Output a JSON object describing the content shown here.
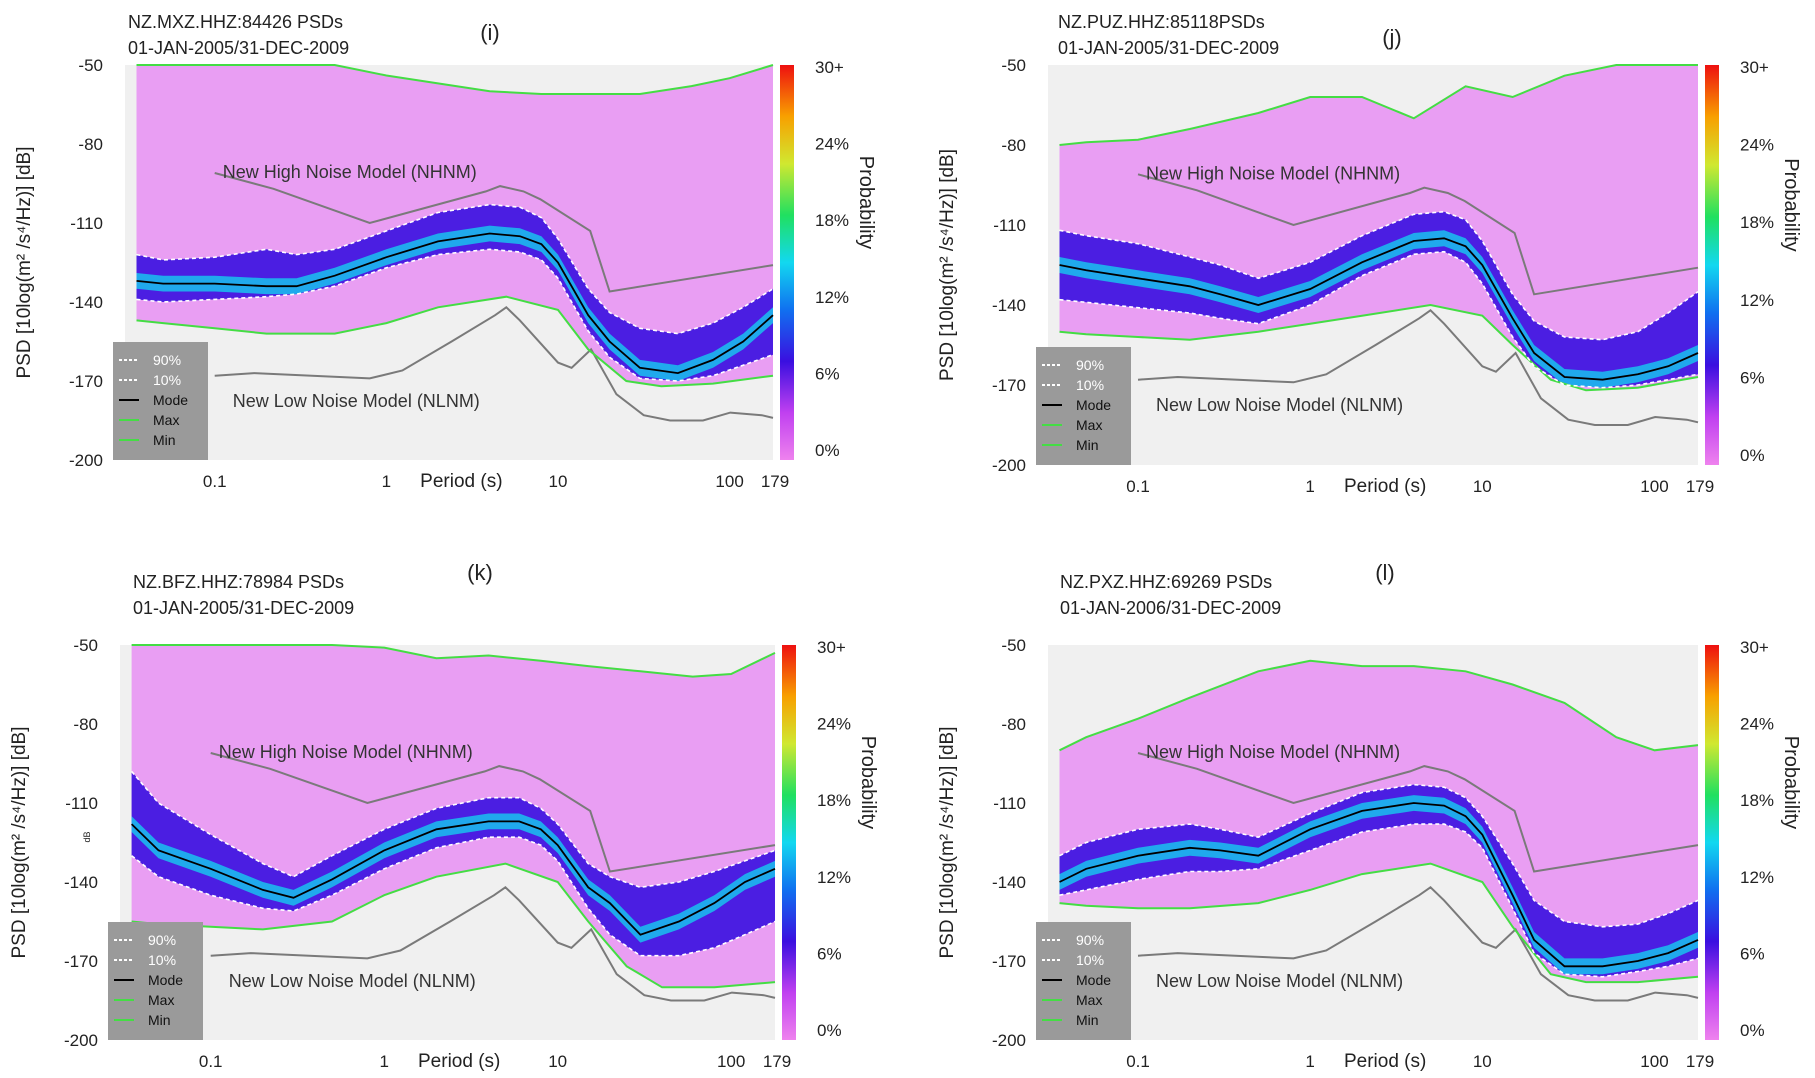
{
  "colors": {
    "plot_background": "#f0f0f0",
    "density_low": "#e88ff3",
    "density_mid": "#3a0fe0",
    "density_high": "#12d8f0",
    "max_min_curve": "#44dd44",
    "noise_model": "#7a7a7a",
    "percentile_line": "#ffffff",
    "mode_line": "#000000",
    "legend_box": "#9a9a9a"
  },
  "common": {
    "ylabel_left": "PSD [10log(m² /s⁴/Hz)] [dB]",
    "xlabel": "Period (s)",
    "colorbar_label": "Probability",
    "nhnm_label": "New High Noise Model (NHNM)",
    "nlnm_label": "New Low Noise Model (NLNM)",
    "legend": [
      "90%",
      "10%",
      "Mode",
      "Max",
      "Min"
    ],
    "x_ticks": [
      "0.1",
      "1",
      "10",
      "100",
      "179"
    ],
    "y_ticks": [
      "-50",
      "-80",
      "-110",
      "-140",
      "-170",
      "-200"
    ],
    "colorbar_ticks": [
      "30+",
      "24%",
      "18%",
      "12%",
      "6%",
      "0%"
    ],
    "small_db_label": "dB"
  },
  "chart_data": [
    {
      "type": "heatmap",
      "panel": "(i)",
      "title": "NZ.MXZ.HHZ:84426 PSDs",
      "subtitle": "01-JAN-2005/31-DEC-2009",
      "xlabel": "Period (s)",
      "ylabel": "PSD [10log(m² /s⁴/Hz)] [dB]",
      "xscale": "log",
      "xlim": [
        0.03,
        179
      ],
      "ylim": [
        -200,
        -50
      ],
      "colorbar": {
        "label": "Probability",
        "range": [
          0,
          30
        ],
        "unit": "%"
      },
      "series": [
        {
          "name": "Mode",
          "x": [
            0.035,
            0.05,
            0.1,
            0.2,
            0.3,
            0.5,
            1,
            2,
            4,
            6,
            8,
            10,
            15,
            20,
            30,
            50,
            80,
            120,
            179
          ],
          "y": [
            -132,
            -133,
            -133,
            -134,
            -134,
            -130,
            -123,
            -117,
            -114,
            -115,
            -118,
            -125,
            -145,
            -155,
            -165,
            -167,
            -162,
            -155,
            -145
          ]
        },
        {
          "name": "90%",
          "x": [
            0.035,
            0.05,
            0.1,
            0.2,
            0.3,
            0.5,
            1,
            2,
            4,
            6,
            8,
            10,
            15,
            20,
            30,
            50,
            80,
            120,
            179
          ],
          "y": [
            -122,
            -124,
            -123,
            -120,
            -122,
            -120,
            -113,
            -106,
            -103,
            -104,
            -108,
            -116,
            -135,
            -144,
            -150,
            -152,
            -148,
            -142,
            -135
          ]
        },
        {
          "name": "10%",
          "x": [
            0.035,
            0.05,
            0.1,
            0.2,
            0.3,
            0.5,
            1,
            2,
            4,
            6,
            8,
            10,
            15,
            20,
            30,
            50,
            80,
            120,
            179
          ],
          "y": [
            -139,
            -140,
            -139,
            -138,
            -137,
            -134,
            -127,
            -122,
            -120,
            -121,
            -124,
            -131,
            -151,
            -161,
            -169,
            -170,
            -168,
            -164,
            -160
          ]
        },
        {
          "name": "Max",
          "x": [
            0.035,
            0.05,
            0.1,
            0.2,
            0.5,
            1,
            2,
            4,
            8,
            15,
            30,
            60,
            100,
            179
          ],
          "y": [
            -50,
            -50,
            -50,
            -50,
            -50,
            -54,
            -57,
            -60,
            -61,
            -61,
            -61,
            -58,
            -55,
            -50
          ]
        },
        {
          "name": "Min",
          "x": [
            0.035,
            0.05,
            0.1,
            0.2,
            0.5,
            1,
            2,
            5,
            10,
            15,
            25,
            40,
            80,
            179
          ],
          "y": [
            -147,
            -148,
            -150,
            -152,
            -152,
            -148,
            -142,
            -138,
            -143,
            -158,
            -170,
            -172,
            -171,
            -168
          ]
        }
      ]
    },
    {
      "type": "heatmap",
      "panel": "(j)",
      "title": "NZ.PUZ.HHZ:85118PSDs",
      "subtitle": "01-JAN-2005/31-DEC-2009",
      "xlabel": "Period (s)",
      "ylabel": "PSD [10log(m² /s⁴/Hz)] [dB]",
      "xscale": "log",
      "xlim": [
        0.03,
        179
      ],
      "ylim": [
        -200,
        -50
      ],
      "colorbar": {
        "label": "Probability",
        "range": [
          0,
          30
        ],
        "unit": "%"
      },
      "series": [
        {
          "name": "Mode",
          "x": [
            0.035,
            0.05,
            0.1,
            0.2,
            0.3,
            0.5,
            1,
            2,
            4,
            6,
            8,
            10,
            15,
            20,
            30,
            50,
            80,
            120,
            179
          ],
          "y": [
            -125,
            -127,
            -130,
            -133,
            -136,
            -140,
            -134,
            -124,
            -116,
            -115,
            -118,
            -125,
            -145,
            -158,
            -167,
            -168,
            -166,
            -163,
            -158
          ]
        },
        {
          "name": "90%",
          "x": [
            0.035,
            0.05,
            0.1,
            0.2,
            0.3,
            0.5,
            1,
            2,
            4,
            6,
            8,
            10,
            15,
            20,
            30,
            50,
            80,
            120,
            179
          ],
          "y": [
            -112,
            -114,
            -117,
            -122,
            -125,
            -130,
            -124,
            -114,
            -106,
            -105,
            -108,
            -116,
            -136,
            -146,
            -152,
            -153,
            -150,
            -143,
            -135
          ]
        },
        {
          "name": "10%",
          "x": [
            0.035,
            0.05,
            0.1,
            0.2,
            0.3,
            0.5,
            1,
            2,
            4,
            6,
            8,
            10,
            15,
            20,
            30,
            50,
            80,
            120,
            179
          ],
          "y": [
            -138,
            -139,
            -141,
            -143,
            -145,
            -147,
            -140,
            -129,
            -121,
            -120,
            -124,
            -132,
            -152,
            -163,
            -170,
            -171,
            -170,
            -168,
            -166
          ]
        },
        {
          "name": "Max",
          "x": [
            0.035,
            0.05,
            0.1,
            0.2,
            0.5,
            1,
            2,
            4,
            8,
            15,
            30,
            60,
            100,
            179
          ],
          "y": [
            -80,
            -79,
            -78,
            -74,
            -68,
            -62,
            -62,
            -70,
            -58,
            -62,
            -54,
            -50,
            -50,
            -50
          ]
        },
        {
          "name": "Min",
          "x": [
            0.035,
            0.05,
            0.1,
            0.2,
            0.5,
            1,
            2,
            5,
            10,
            15,
            25,
            40,
            80,
            179
          ],
          "y": [
            -150,
            -151,
            -152,
            -153,
            -150,
            -147,
            -144,
            -140,
            -144,
            -155,
            -168,
            -172,
            -171,
            -167
          ]
        }
      ]
    },
    {
      "type": "heatmap",
      "panel": "(k)",
      "title": "NZ.BFZ.HHZ:78984 PSDs",
      "subtitle": "01-JAN-2005/31-DEC-2009",
      "xlabel": "Period (s)",
      "ylabel": "PSD [10log(m² /s⁴/Hz)] [dB]",
      "xscale": "log",
      "xlim": [
        0.03,
        179
      ],
      "ylim": [
        -200,
        -50
      ],
      "colorbar": {
        "label": "Probability",
        "range": [
          0,
          30
        ],
        "unit": "%"
      },
      "series": [
        {
          "name": "Mode",
          "x": [
            0.035,
            0.05,
            0.1,
            0.2,
            0.3,
            0.5,
            1,
            2,
            4,
            6,
            8,
            10,
            15,
            20,
            30,
            50,
            80,
            120,
            179
          ],
          "y": [
            -118,
            -128,
            -135,
            -143,
            -146,
            -139,
            -128,
            -120,
            -117,
            -117,
            -120,
            -126,
            -142,
            -148,
            -160,
            -155,
            -148,
            -140,
            -135
          ]
        },
        {
          "name": "90%",
          "x": [
            0.035,
            0.05,
            0.1,
            0.2,
            0.3,
            0.5,
            1,
            2,
            4,
            6,
            8,
            10,
            15,
            20,
            30,
            50,
            80,
            120,
            179
          ],
          "y": [
            -98,
            -110,
            -122,
            -133,
            -138,
            -130,
            -120,
            -112,
            -108,
            -108,
            -112,
            -118,
            -133,
            -138,
            -142,
            -140,
            -136,
            -132,
            -128
          ]
        },
        {
          "name": "10%",
          "x": [
            0.035,
            0.05,
            0.1,
            0.2,
            0.3,
            0.5,
            1,
            2,
            4,
            6,
            8,
            10,
            15,
            20,
            30,
            50,
            80,
            120,
            179
          ],
          "y": [
            -130,
            -138,
            -145,
            -150,
            -151,
            -145,
            -135,
            -127,
            -123,
            -123,
            -126,
            -132,
            -150,
            -160,
            -168,
            -168,
            -165,
            -160,
            -155
          ]
        },
        {
          "name": "Max",
          "x": [
            0.035,
            0.05,
            0.1,
            0.2,
            0.5,
            1,
            2,
            4,
            8,
            15,
            30,
            60,
            100,
            179
          ],
          "y": [
            -50,
            -50,
            -50,
            -50,
            -50,
            -51,
            -55,
            -54,
            -56,
            -58,
            -60,
            -62,
            -61,
            -53
          ]
        },
        {
          "name": "Min",
          "x": [
            0.035,
            0.05,
            0.1,
            0.2,
            0.5,
            1,
            2,
            5,
            10,
            15,
            25,
            40,
            80,
            179
          ],
          "y": [
            -155,
            -156,
            -157,
            -158,
            -155,
            -145,
            -138,
            -133,
            -140,
            -155,
            -172,
            -180,
            -180,
            -178
          ]
        }
      ]
    },
    {
      "type": "heatmap",
      "panel": "(l)",
      "title": "NZ.PXZ.HHZ:69269 PSDs",
      "subtitle": "01-JAN-2006/31-DEC-2009",
      "xlabel": "Period (s)",
      "ylabel": "PSD [10log(m² /s⁴/Hz)] [dB]",
      "xscale": "log",
      "xlim": [
        0.03,
        179
      ],
      "ylim": [
        -200,
        -50
      ],
      "colorbar": {
        "label": "Probability",
        "range": [
          0,
          30
        ],
        "unit": "%"
      },
      "series": [
        {
          "name": "Mode",
          "x": [
            0.035,
            0.05,
            0.1,
            0.2,
            0.3,
            0.5,
            1,
            2,
            4,
            6,
            8,
            10,
            15,
            20,
            30,
            50,
            80,
            120,
            179
          ],
          "y": [
            -140,
            -135,
            -130,
            -127,
            -128,
            -130,
            -120,
            -113,
            -110,
            -111,
            -115,
            -122,
            -145,
            -162,
            -172,
            -172,
            -170,
            -167,
            -162
          ]
        },
        {
          "name": "90%",
          "x": [
            0.035,
            0.05,
            0.1,
            0.2,
            0.3,
            0.5,
            1,
            2,
            4,
            6,
            8,
            10,
            15,
            20,
            30,
            50,
            80,
            120,
            179
          ],
          "y": [
            -130,
            -125,
            -120,
            -118,
            -120,
            -123,
            -114,
            -106,
            -103,
            -104,
            -108,
            -115,
            -133,
            -147,
            -155,
            -157,
            -156,
            -152,
            -147
          ]
        },
        {
          "name": "10%",
          "x": [
            0.035,
            0.05,
            0.1,
            0.2,
            0.3,
            0.5,
            1,
            2,
            4,
            6,
            8,
            10,
            15,
            20,
            30,
            50,
            80,
            120,
            179
          ],
          "y": [
            -145,
            -143,
            -139,
            -136,
            -136,
            -135,
            -128,
            -121,
            -118,
            -118,
            -121,
            -127,
            -150,
            -167,
            -175,
            -176,
            -174,
            -172,
            -169
          ]
        },
        {
          "name": "Max",
          "x": [
            0.035,
            0.05,
            0.1,
            0.2,
            0.5,
            1,
            2,
            4,
            8,
            15,
            30,
            60,
            100,
            179
          ],
          "y": [
            -90,
            -85,
            -78,
            -70,
            -60,
            -56,
            -58,
            -58,
            -60,
            -65,
            -72,
            -85,
            -90,
            -88
          ]
        },
        {
          "name": "Min",
          "x": [
            0.035,
            0.05,
            0.1,
            0.2,
            0.5,
            1,
            2,
            5,
            10,
            15,
            25,
            40,
            80,
            179
          ],
          "y": [
            -148,
            -149,
            -150,
            -150,
            -148,
            -143,
            -137,
            -133,
            -140,
            -157,
            -175,
            -178,
            -178,
            -176
          ]
        }
      ]
    }
  ],
  "noise_models": {
    "NHNM": {
      "x": [
        0.1,
        0.22,
        0.8,
        3.8,
        4.6,
        6.3,
        7.9,
        15.4,
        20,
        179
      ],
      "y": [
        -91,
        -97,
        -110,
        -98,
        -96,
        -98,
        -101,
        -113,
        -136,
        -126
      ]
    },
    "NLNM": {
      "x": [
        0.1,
        0.17,
        0.8,
        1.24,
        2.4,
        4.3,
        5.0,
        6.0,
        10,
        12,
        15.6,
        21.9,
        31.6,
        45,
        70,
        101,
        154,
        179
      ],
      "y": [
        -168,
        -167,
        -169,
        -166,
        -155,
        -145,
        -142,
        -147,
        -163,
        -165,
        -158,
        -175,
        -183,
        -185,
        -185,
        -182,
        -183,
        -184
      ]
    }
  }
}
